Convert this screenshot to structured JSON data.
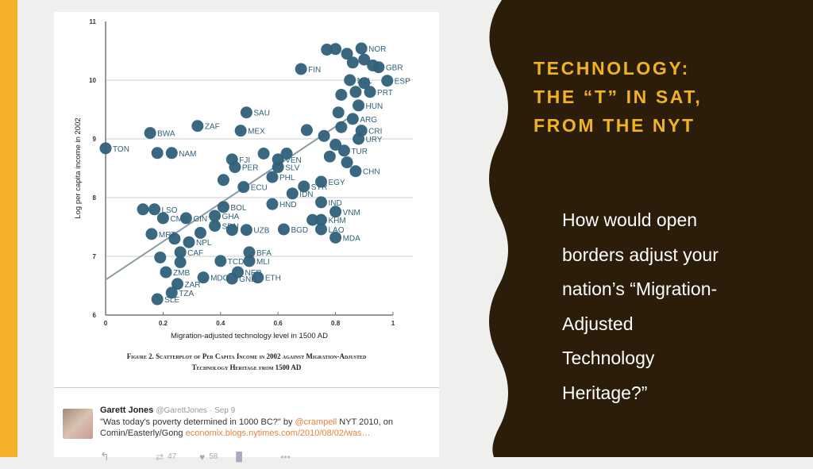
{
  "slide": {
    "title_lines": [
      "TECHNOLOGY:",
      "THE “T” IN SAT,",
      "FROM THE NYT"
    ],
    "body_lines": [
      "How would open",
      "borders adjust your",
      "nation’s “Migration-",
      "Adjusted",
      "Technology",
      "Heritage?”"
    ],
    "colors": {
      "accent": "#f0b323",
      "dark_panel": "#2b1d0a",
      "stripe": "#f6b12a",
      "background": "#efefed",
      "point": "#2f6079"
    }
  },
  "figure": {
    "caption_line1": "Figure 2. Scatterplot of Per Capita Income in 2002 against Migration-Adjusted",
    "caption_line2": "Technology Heritage from 1500 AD"
  },
  "tweet": {
    "name": "Garett Jones",
    "handle": "@GarettJones",
    "time": "· Sep 9",
    "text_before": "\"Was today's poverty determined in 1000 BC?\" by ",
    "mention": "@crampell",
    "text_after": " NYT 2010, on Comin/Easterly/Gong ",
    "link": "economix.blogs.nytimes.com/2010/08/02/was…",
    "retweets": "47",
    "likes": "58",
    "icons": [
      "reply-icon",
      "retweet-icon",
      "heart-icon",
      "analytics-icon",
      "more-icon"
    ]
  },
  "chart_data": {
    "type": "scatter",
    "xlabel": "Migration-adjusted technology level in 1500 AD",
    "ylabel": "Log per capita income in 2002",
    "xlim": [
      0,
      1
    ],
    "ylim": [
      6,
      11
    ],
    "xticks": [
      "0",
      "0.2",
      "0.4",
      "0.6",
      "0.8",
      "1"
    ],
    "yticks": [
      "6",
      "7",
      "8",
      "9",
      "10",
      "11"
    ],
    "grid": "horizontal",
    "trendline": {
      "intercept": 6.6,
      "slope": 3.26,
      "x_range": [
        0,
        0.85
      ]
    },
    "points": [
      {
        "label": "TON",
        "x": 0.0,
        "y": 8.84
      },
      {
        "label": "BWA",
        "x": 0.155,
        "y": 9.1
      },
      {
        "label": "ZAF",
        "x": 0.32,
        "y": 9.22
      },
      {
        "label": "SAU",
        "x": 0.49,
        "y": 9.45
      },
      {
        "label": "MEX",
        "x": 0.47,
        "y": 9.14
      },
      {
        "label": "FIN",
        "x": 0.68,
        "y": 10.19
      },
      {
        "label": "NOR",
        "x": 0.89,
        "y": 10.54
      },
      {
        "label": "GBR",
        "x": 0.95,
        "y": 10.22
      },
      {
        "label": "ESP",
        "x": 0.98,
        "y": 9.99
      },
      {
        "label": "NZL",
        "x": 0.85,
        "y": 10.0
      },
      {
        "label": "PRT",
        "x": 0.92,
        "y": 9.8
      },
      {
        "label": "HUN",
        "x": 0.88,
        "y": 9.57
      },
      {
        "label": "ARG",
        "x": 0.86,
        "y": 9.34
      },
      {
        "label": "CRI",
        "x": 0.89,
        "y": 9.14
      },
      {
        "label": "URY",
        "x": 0.88,
        "y": 9.0
      },
      {
        "label": "TUR",
        "x": 0.83,
        "y": 8.8
      },
      {
        "label": "CHN",
        "x": 0.87,
        "y": 8.45
      },
      {
        "label": "EGY",
        "x": 0.75,
        "y": 8.27
      },
      {
        "label": "SYR",
        "x": 0.69,
        "y": 8.19
      },
      {
        "label": "IDN",
        "x": 0.65,
        "y": 8.07
      },
      {
        "label": "HND",
        "x": 0.58,
        "y": 7.89
      },
      {
        "label": "IND",
        "x": 0.75,
        "y": 7.92
      },
      {
        "label": "VNM",
        "x": 0.8,
        "y": 7.76
      },
      {
        "label": "KHM",
        "x": 0.75,
        "y": 7.62
      },
      {
        "label": "LAO",
        "x": 0.75,
        "y": 7.46
      },
      {
        "label": "MDA",
        "x": 0.8,
        "y": 7.32
      },
      {
        "label": "BGD",
        "x": 0.62,
        "y": 7.46
      },
      {
        "label": "UZB",
        "x": 0.49,
        "y": 7.45
      },
      {
        "label": "BOL",
        "x": 0.41,
        "y": 7.84
      },
      {
        "label": "GHA",
        "x": 0.38,
        "y": 7.69
      },
      {
        "label": "SDN",
        "x": 0.38,
        "y": 7.52
      },
      {
        "label": "BFA",
        "x": 0.5,
        "y": 7.07
      },
      {
        "label": "MLI",
        "x": 0.5,
        "y": 6.92
      },
      {
        "label": "NER",
        "x": 0.46,
        "y": 6.73
      },
      {
        "label": "ETH",
        "x": 0.53,
        "y": 6.64
      },
      {
        "label": "GNB",
        "x": 0.44,
        "y": 6.62
      },
      {
        "label": "TCD",
        "x": 0.4,
        "y": 6.92
      },
      {
        "label": "MDG",
        "x": 0.34,
        "y": 6.64
      },
      {
        "label": "ZMB",
        "x": 0.21,
        "y": 6.73
      },
      {
        "label": "ZAR",
        "x": 0.25,
        "y": 6.53
      },
      {
        "label": "TZA",
        "x": 0.23,
        "y": 6.38
      },
      {
        "label": "SLE",
        "x": 0.18,
        "y": 6.27
      },
      {
        "label": "CAF",
        "x": 0.26,
        "y": 7.07
      },
      {
        "label": "NPL",
        "x": 0.29,
        "y": 7.24
      },
      {
        "label": "MRT",
        "x": 0.16,
        "y": 7.38
      },
      {
        "label": "CMR",
        "x": 0.2,
        "y": 7.65
      },
      {
        "label": "GIN",
        "x": 0.28,
        "y": 7.65
      },
      {
        "label": "LSO",
        "x": 0.17,
        "y": 7.8
      },
      {
        "label": "NAM",
        "x": 0.23,
        "y": 8.76
      },
      {
        "label": "FJI",
        "x": 0.44,
        "y": 8.65
      },
      {
        "label": "PER",
        "x": 0.45,
        "y": 8.52
      },
      {
        "label": "VEN",
        "x": 0.6,
        "y": 8.65
      },
      {
        "label": "SLV",
        "x": 0.6,
        "y": 8.52
      },
      {
        "label": "PHL",
        "x": 0.58,
        "y": 8.35
      },
      {
        "label": "ECU",
        "x": 0.48,
        "y": 8.18
      },
      {
        "label": "",
        "x": 0.13,
        "y": 7.8
      },
      {
        "label": "",
        "x": 0.18,
        "y": 8.76
      },
      {
        "label": "",
        "x": 0.41,
        "y": 8.3
      },
      {
        "label": "",
        "x": 0.55,
        "y": 8.75
      },
      {
        "label": "",
        "x": 0.63,
        "y": 8.75
      },
      {
        "label": "",
        "x": 0.7,
        "y": 9.15
      },
      {
        "label": "",
        "x": 0.76,
        "y": 9.05
      },
      {
        "label": "",
        "x": 0.8,
        "y": 8.9
      },
      {
        "label": "",
        "x": 0.82,
        "y": 9.2
      },
      {
        "label": "",
        "x": 0.78,
        "y": 8.7
      },
      {
        "label": "",
        "x": 0.84,
        "y": 8.6
      },
      {
        "label": "",
        "x": 0.81,
        "y": 9.45
      },
      {
        "label": "",
        "x": 0.82,
        "y": 9.75
      },
      {
        "label": "",
        "x": 0.86,
        "y": 10.3
      },
      {
        "label": "",
        "x": 0.9,
        "y": 10.35
      },
      {
        "label": "",
        "x": 0.93,
        "y": 10.25
      },
      {
        "label": "",
        "x": 0.84,
        "y": 10.45
      },
      {
        "label": "",
        "x": 0.8,
        "y": 10.53
      },
      {
        "label": "",
        "x": 0.77,
        "y": 10.52
      },
      {
        "label": "",
        "x": 0.9,
        "y": 9.95
      },
      {
        "label": "",
        "x": 0.87,
        "y": 9.8
      },
      {
        "label": "",
        "x": 0.24,
        "y": 7.3
      },
      {
        "label": "",
        "x": 0.26,
        "y": 6.9
      },
      {
        "label": "",
        "x": 0.19,
        "y": 6.98
      },
      {
        "label": "",
        "x": 0.33,
        "y": 7.4
      },
      {
        "label": "",
        "x": 0.44,
        "y": 7.45
      },
      {
        "label": "",
        "x": 0.72,
        "y": 7.62
      }
    ]
  }
}
